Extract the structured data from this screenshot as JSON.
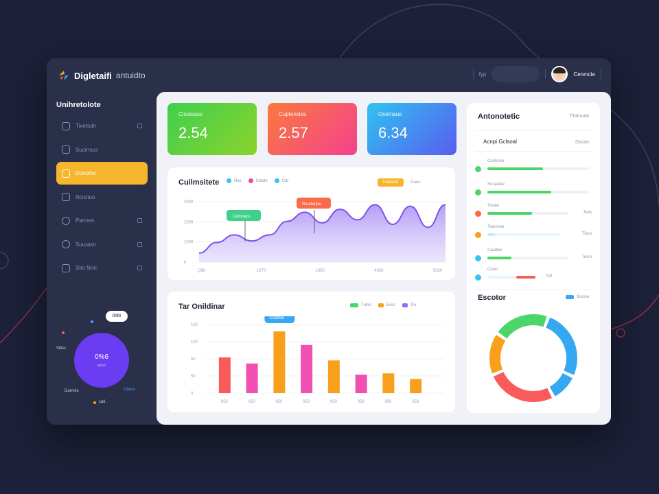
{
  "app": {
    "brand": "Digletaifi",
    "brand_sub": "antuidto",
    "top_mini": "fyp",
    "search_text": "",
    "user_name": "Cenmcie",
    "user_role": ""
  },
  "sidebar": {
    "title": "Unihretolote",
    "items": [
      {
        "label": "Tixetsdn",
        "icon": "calendar-icon",
        "active": false
      },
      {
        "label": "Sucirnuci",
        "icon": "box-icon",
        "active": false
      },
      {
        "label": "Donoiho",
        "icon": "star-icon",
        "active": true
      },
      {
        "label": "Ncicitoo",
        "icon": "car-icon",
        "active": false
      },
      {
        "label": "Pannen",
        "icon": "clock-icon",
        "active": false
      },
      {
        "label": "Suurasn",
        "icon": "alert-icon",
        "active": false
      },
      {
        "label": "Stio Nnic",
        "icon": "grid-icon",
        "active": false
      }
    ],
    "widget": {
      "pill": "0ido",
      "value": "0%6",
      "sub": "auksr",
      "label_left": "Sitiss",
      "label_bl": "Darmiio",
      "label_br": "Cbeso",
      "label_bottom": "cati"
    }
  },
  "stats": [
    {
      "label": "Cinsteass",
      "value": "2.54"
    },
    {
      "label": "Cuptensies",
      "value": "2.57"
    },
    {
      "label": "Osetnaus",
      "value": "6.34"
    }
  ],
  "line_card": {
    "title": "Cuilmsitete",
    "legend": [
      {
        "name": "Hos",
        "color": "#36c5f0"
      },
      {
        "name": "Stedlo",
        "color": "#f2479a"
      },
      {
        "name": "Cat",
        "color": "#36c5f0"
      }
    ],
    "chip": "Fabdem",
    "chip_after": "Gaes",
    "tooltip1": "Cerbnacs",
    "tooltip2": "Reudenpe"
  },
  "bar_card": {
    "title": "Tar Onildinar",
    "legend": [
      {
        "name": "Tulno",
        "color": "#4cd66a"
      },
      {
        "name": "Ecss",
        "color": "#f8a01c"
      },
      {
        "name": "Tiu",
        "color": "#9a6cf2"
      }
    ],
    "tooltip": "Coarbta"
  },
  "right_panel": {
    "title": "Antonotetic",
    "link": "Tihtinotat",
    "sub_title": "Acnpi Gclsoal",
    "sub_value": "Dscdo",
    "progress": [
      {
        "label": "Corinnoo",
        "value": "",
        "fraction": 0.55,
        "color": "#4cd66a"
      },
      {
        "label": "Srcaeelie",
        "value": "",
        "fraction": 0.63,
        "color": "#4cd66a"
      },
      {
        "label": "Tasien",
        "value": "Tsdo",
        "fraction": 0.55,
        "color": "#f96b3a"
      },
      {
        "label": "Tiuosnne",
        "value": "Tisso",
        "fraction": 0.1,
        "color": "#f8a01c"
      },
      {
        "label": "Gasitlee",
        "value": "Tiesn",
        "fraction": 0.3,
        "color": "#4cd66a"
      },
      {
        "label": "Cisen",
        "value": "",
        "fraction": 0.6,
        "color": "#36c5f0"
      }
    ],
    "extra_val": "Tsif",
    "donut_title": "Escotor",
    "donut_legend": "Bccise",
    "donut": [
      {
        "value": 25,
        "color": "#36a8f2"
      },
      {
        "value": 10,
        "color": "#36a8f2"
      },
      {
        "value": 25,
        "color": "#f95a5a"
      },
      {
        "value": 15,
        "color": "#f8a01c"
      },
      {
        "value": 20,
        "color": "#4cd66a"
      }
    ]
  },
  "chart_data": [
    {
      "type": "area",
      "title": "Cuilmsitete",
      "yticks": [
        "2000",
        "1500",
        "1000",
        "0"
      ],
      "xticks": [
        "Q50",
        "1070",
        "1050",
        "4050",
        "5020"
      ],
      "ylim": [
        0,
        2000
      ],
      "values": [
        300,
        650,
        900,
        700,
        900,
        1350,
        1650,
        1300,
        1750,
        1400,
        1900,
        1250,
        1850,
        1150,
        1900
      ],
      "grid": true
    },
    {
      "type": "bar",
      "title": "Tar Onildinar",
      "yticks": [
        "100",
        "100",
        "50",
        "50",
        "0"
      ],
      "xticks": [
        "050",
        "050",
        "050",
        "050",
        "050",
        "050",
        "050",
        "050"
      ],
      "values": [
        58,
        48,
        100,
        78,
        53,
        30,
        32,
        23
      ],
      "colors": [
        "#f95a5a",
        "#f24fb2",
        "#f8a01c",
        "#f24fb2",
        "#f8a01c",
        "#f24fb2",
        "#f8a01c",
        "#f8a01c"
      ],
      "ylim": [
        0,
        100
      ],
      "grid": true
    }
  ]
}
